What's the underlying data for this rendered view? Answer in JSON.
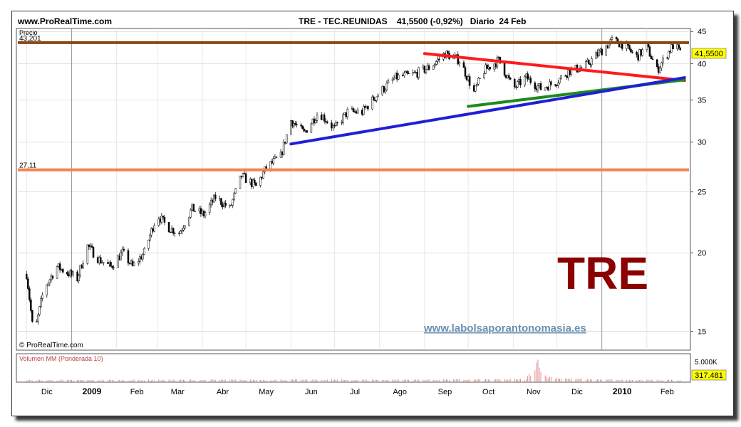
{
  "header": {
    "site": "www.ProRealTime.com",
    "title": "TRE - TEC.REUNIDAS    41,5500 (-0,92%)   Diario  24 Feb"
  },
  "price_panel": {
    "label": "Precio",
    "copyright": "© ProRealTime.com",
    "last_price": "41,5500",
    "big_label": "TRE",
    "watermark": "www.labolsaporantonomasia.es"
  },
  "volume_panel": {
    "label": "Volumen MM (Ponderada 10)",
    "axis_label": "5.000K",
    "last_value": "317.481"
  },
  "colors": {
    "resistance": "#8b4513",
    "support": "#f5844c",
    "red_trend": "#ff1a1a",
    "green_trend": "#1c8c1c",
    "blue_trend": "#1f1fd6",
    "big_label": "#8b0000",
    "last_price_box": "#ffff00"
  },
  "chart_data": {
    "type": "candlestick",
    "scale": "log",
    "ylim": [
      14,
      45.5
    ],
    "y_ticks": [
      {
        "value": 45,
        "label": "45"
      },
      {
        "value": 40,
        "label": "40"
      },
      {
        "value": 35,
        "label": "35"
      },
      {
        "value": 30,
        "label": "30"
      },
      {
        "value": 25,
        "label": "25"
      },
      {
        "value": 20,
        "label": "20"
      },
      {
        "value": 15,
        "label": "15"
      }
    ],
    "x_labels": [
      {
        "label": "Dic",
        "bold": false
      },
      {
        "label": "2009",
        "bold": true
      },
      {
        "label": "Feb",
        "bold": false
      },
      {
        "label": "Mar",
        "bold": false
      },
      {
        "label": "Abr",
        "bold": false
      },
      {
        "label": "May",
        "bold": false
      },
      {
        "label": "Jun",
        "bold": false
      },
      {
        "label": "Jul",
        "bold": false
      },
      {
        "label": "Ago",
        "bold": false
      },
      {
        "label": "Sep",
        "bold": false
      },
      {
        "label": "Oct",
        "bold": false
      },
      {
        "label": "Nov",
        "bold": false
      },
      {
        "label": "Dic",
        "bold": false
      },
      {
        "label": "2010",
        "bold": true
      },
      {
        "label": "Feb",
        "bold": false
      }
    ],
    "horizontal_lines": [
      {
        "name": "resistance",
        "value": 43.201,
        "label": "43,201"
      },
      {
        "name": "support",
        "value": 27.11,
        "label": "27,11"
      }
    ],
    "trend_lines": [
      {
        "name": "red",
        "from": [
          "2009-09-01",
          41.5
        ],
        "to": [
          "2010-02-24",
          37.6
        ]
      },
      {
        "name": "green",
        "from": [
          "2009-10-01",
          34.2
        ],
        "to": [
          "2010-02-24",
          37.7
        ]
      },
      {
        "name": "blue",
        "from": [
          "2009-06-01",
          29.8
        ],
        "to": [
          "2010-02-24",
          38.0
        ]
      }
    ],
    "price_path": [
      [
        "2008-12-01",
        18.5
      ],
      [
        "2008-12-06",
        14.6
      ],
      [
        "2008-12-13",
        17.5
      ],
      [
        "2008-12-22",
        19.0
      ],
      [
        "2009-01-05",
        18.2
      ],
      [
        "2009-01-12",
        20.5
      ],
      [
        "2009-01-20",
        19.5
      ],
      [
        "2009-01-28",
        19.0
      ],
      [
        "2009-02-05",
        20.0
      ],
      [
        "2009-02-12",
        19.0
      ],
      [
        "2009-02-20",
        20.0
      ],
      [
        "2009-03-01",
        23.0
      ],
      [
        "2009-03-08",
        22.0
      ],
      [
        "2009-03-16",
        21.5
      ],
      [
        "2009-03-25",
        23.5
      ],
      [
        "2009-04-02",
        23.0
      ],
      [
        "2009-04-10",
        24.5
      ],
      [
        "2009-04-20",
        23.5
      ],
      [
        "2009-04-28",
        26.5
      ],
      [
        "2009-05-08",
        25.5
      ],
      [
        "2009-05-15",
        27.3
      ],
      [
        "2009-05-25",
        28.5
      ],
      [
        "2009-06-01",
        32.5
      ],
      [
        "2009-06-10",
        31.0
      ],
      [
        "2009-06-20",
        33.5
      ],
      [
        "2009-07-01",
        31.5
      ],
      [
        "2009-07-10",
        33.5
      ],
      [
        "2009-07-20",
        33.5
      ],
      [
        "2009-08-01",
        36.0
      ],
      [
        "2009-08-12",
        38.0
      ],
      [
        "2009-08-25",
        38.5
      ],
      [
        "2009-09-05",
        39.5
      ],
      [
        "2009-09-15",
        41.5
      ],
      [
        "2009-09-25",
        40.5
      ],
      [
        "2009-10-05",
        36.0
      ],
      [
        "2009-10-12",
        39.0
      ],
      [
        "2009-10-22",
        40.5
      ],
      [
        "2009-11-01",
        36.5
      ],
      [
        "2009-11-10",
        38.0
      ],
      [
        "2009-11-20",
        36.5
      ],
      [
        "2009-12-01",
        37.5
      ],
      [
        "2009-12-10",
        39.0
      ],
      [
        "2009-12-20",
        39.5
      ],
      [
        "2010-01-01",
        42.0
      ],
      [
        "2010-01-08",
        43.5
      ],
      [
        "2010-01-15",
        43.0
      ],
      [
        "2010-01-25",
        41.0
      ],
      [
        "2010-02-01",
        42.5
      ],
      [
        "2010-02-08",
        39.0
      ],
      [
        "2010-02-15",
        41.5
      ],
      [
        "2010-02-20",
        43.0
      ],
      [
        "2010-02-24",
        41.55
      ]
    ],
    "volume": [
      [
        "2008-12-01",
        300
      ],
      [
        "2009-03-01",
        350
      ],
      [
        "2009-06-01",
        380
      ],
      [
        "2009-09-01",
        400
      ],
      [
        "2009-11-10",
        500
      ],
      [
        "2009-11-19",
        5600
      ],
      [
        "2009-11-21",
        1200
      ],
      [
        "2009-12-10",
        600
      ],
      [
        "2010-01-15",
        350
      ],
      [
        "2010-02-24",
        317.481
      ]
    ]
  }
}
